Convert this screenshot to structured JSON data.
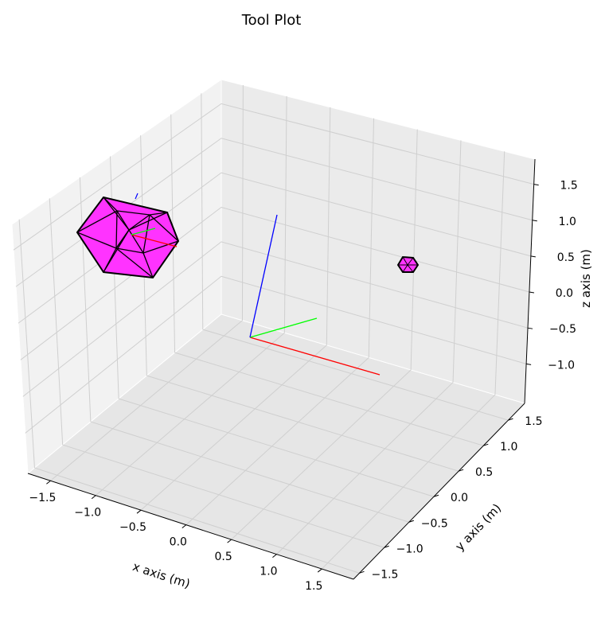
{
  "chart_data": {
    "type": "scatter",
    "projection": "3d",
    "title": "Tool Plot",
    "xlabel": "x axis (m)",
    "ylabel": "y axis (m)",
    "zlabel": "z axis (m)",
    "x_ticks": [
      "−1.5",
      "−1.0",
      "−0.5",
      "0.0",
      "0.5",
      "1.0",
      "1.5"
    ],
    "y_ticks": [
      "−1.5",
      "−1.0",
      "−0.5",
      "0.0",
      "0.5",
      "1.0",
      "1.5"
    ],
    "z_ticks": [
      "−1.0",
      "−0.5",
      "0.0",
      "0.5",
      "1.0",
      "1.5"
    ],
    "grid": true,
    "objects": [
      {
        "shape": "icosahedron",
        "color": "#ff33ff",
        "edge_color": "#000000",
        "position": [
          -1.4,
          0.6,
          0.9
        ],
        "relative_size": "large"
      },
      {
        "shape": "icosahedron",
        "color": "#ff33ff",
        "edge_color": "#000000",
        "position": [
          1.7,
          1.5,
          0.55
        ],
        "relative_size": "small"
      }
    ],
    "frame_axes": [
      {
        "axis": "x",
        "color": "#ff0000"
      },
      {
        "axis": "y",
        "color": "#00ff00"
      },
      {
        "axis": "z",
        "color": "#0000ff"
      }
    ]
  }
}
